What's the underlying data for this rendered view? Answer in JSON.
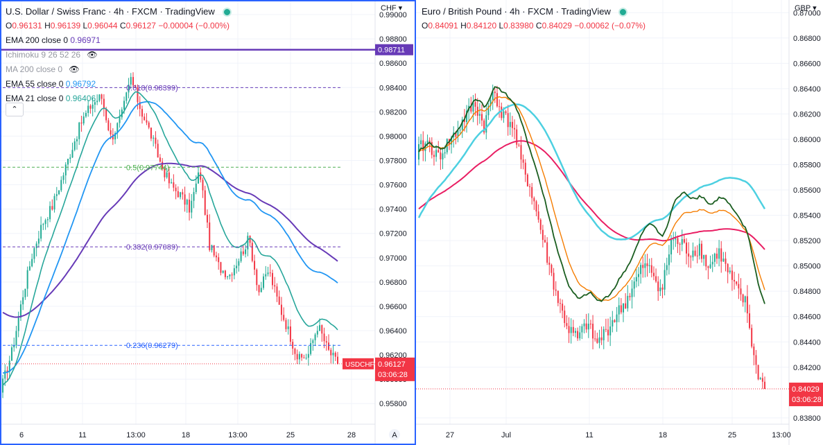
{
  "colors": {
    "up": "#22ab94",
    "down": "#f23645",
    "ema200_1": "#673ab7",
    "ema55_1": "#2196f3",
    "ema21_1": "#26a69a",
    "ema200_2": "#e91e63",
    "ema55_2": "#4dd0e1",
    "ema21_2": "#f57c00",
    "ema10_2": "#1b5e20"
  },
  "left": {
    "title": "U.S. Dollar / Swiss Franc · 4h · FXCM · TradingView",
    "ohlc": {
      "o": "0.96131",
      "h": "0.96139",
      "l": "0.96044",
      "c": "0.96127",
      "chg": "−0.00004 (−0.00%)"
    },
    "indicators": [
      {
        "name": "EMA 200 close 0",
        "value": "0.96971",
        "color": "#673ab7"
      },
      {
        "name": "Ichimoku 9 26 52 26",
        "value": "",
        "color": "#131722"
      },
      {
        "name": "MA 200 close 0",
        "value": "",
        "color": "#131722"
      },
      {
        "name": "EMA 55 close 0",
        "value": "0.96792",
        "color": "#2196f3"
      },
      {
        "name": "EMA 21 close 0",
        "value": "0.96406",
        "color": "#26a69a"
      }
    ],
    "currency": "CHF",
    "price_badge": "0.96127",
    "countdown": "03:06:28",
    "symbol_badge": "USDCHF",
    "line_badge": "0.98711",
    "x_labels": [
      "6",
      "11",
      "13:00",
      "18",
      "13:00",
      "25",
      "28"
    ],
    "scale_btn": "A",
    "fibs": [
      {
        "label": "0.618(0.98399)",
        "value": 0.98399,
        "color": "#673ab7"
      },
      {
        "label": "0.5(0.97744)",
        "value": 0.97744,
        "color": "#4caf50"
      },
      {
        "label": "0.382(0.97089)",
        "value": 0.97089,
        "color": "#673ab7"
      },
      {
        "label": "0.236(0.96279)",
        "value": 0.96279,
        "color": "#2962ff"
      }
    ]
  },
  "right": {
    "title": "Euro / British Pound · 4h · FXCM · TradingView",
    "ohlc": {
      "o": "0.84091",
      "h": "0.84120",
      "l": "0.83980",
      "c": "0.84029",
      "chg": "−0.00062 (−0.07%)"
    },
    "currency": "GBP",
    "price_badge": "0.84029",
    "countdown": "03:06:28",
    "x_labels": [
      "27",
      "Jul",
      "11",
      "18",
      "25",
      "13:00"
    ]
  },
  "chart_data": [
    {
      "type": "candlestick",
      "title": "U.S. Dollar / Swiss Franc · 4h · FXCM · TradingView",
      "ylim": [
        0.9563,
        0.9912
      ],
      "yticks": [
        "0.99000",
        "0.98800",
        "0.98600",
        "0.98400",
        "0.98200",
        "0.98000",
        "0.97800",
        "0.97600",
        "0.97400",
        "0.97200",
        "0.97000",
        "0.96800",
        "0.96600",
        "0.96400",
        "0.96200",
        "0.96000",
        "0.95800"
      ],
      "x_ticks": [
        "6",
        "11",
        "13:00",
        "18",
        "13:00",
        "25",
        "28"
      ],
      "key_points": [
        0.9597,
        0.9625,
        0.9668,
        0.9703,
        0.9728,
        0.9742,
        0.9765,
        0.979,
        0.9812,
        0.9826,
        0.9833,
        0.9798,
        0.9815,
        0.9848,
        0.9822,
        0.9802,
        0.9778,
        0.976,
        0.9752,
        0.974,
        0.9772,
        0.971,
        0.9692,
        0.9686,
        0.97,
        0.9716,
        0.9672,
        0.969,
        0.9662,
        0.964,
        0.9616,
        0.962,
        0.9645,
        0.9624,
        0.9613
      ],
      "horizontal_line": 0.98711,
      "current_price": 0.96127,
      "series": [
        {
          "name": "EMA 200 close 0",
          "last": 0.96971
        },
        {
          "name": "EMA 55 close 0",
          "last": 0.96792
        },
        {
          "name": "EMA 21 close 0",
          "last": 0.96406
        }
      ]
    },
    {
      "type": "candlestick",
      "title": "Euro / British Pound · 4h · FXCM · TradingView",
      "ylim": [
        0.8375,
        0.871
      ],
      "yticks": [
        "0.87000",
        "0.86800",
        "0.86600",
        "0.86400",
        "0.86200",
        "0.86000",
        "0.85800",
        "0.85600",
        "0.85400",
        "0.85200",
        "0.85000",
        "0.84800",
        "0.84600",
        "0.84400",
        "0.84200",
        "0.83800"
      ],
      "x_ticks": [
        "27",
        "Jul",
        "11",
        "18",
        "25",
        "13:00"
      ],
      "key_points": [
        0.8592,
        0.8598,
        0.8585,
        0.8596,
        0.8605,
        0.8618,
        0.8628,
        0.861,
        0.864,
        0.8618,
        0.8612,
        0.858,
        0.856,
        0.853,
        0.8498,
        0.847,
        0.845,
        0.8442,
        0.8455,
        0.8438,
        0.8448,
        0.846,
        0.847,
        0.8485,
        0.85,
        0.8495,
        0.848,
        0.852,
        0.8518,
        0.851,
        0.8515,
        0.8498,
        0.8512,
        0.8496,
        0.848,
        0.847,
        0.842,
        0.8403
      ],
      "current_price": 0.84029
    }
  ]
}
